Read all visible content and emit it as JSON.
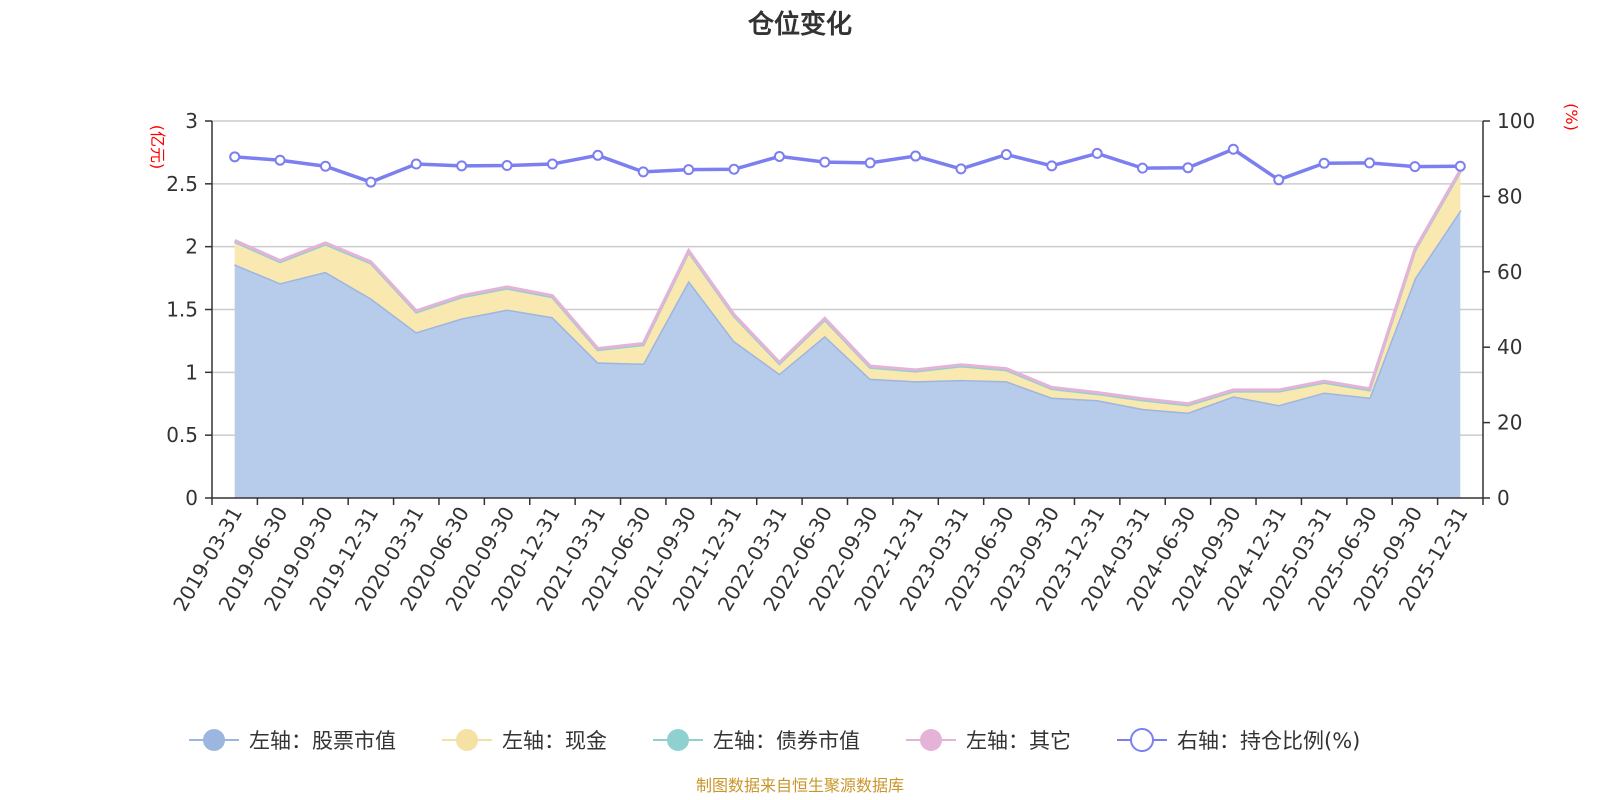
{
  "chart_data": {
    "type": "area",
    "title": "仓位变化",
    "left_axis_unit": "(亿元)",
    "right_axis_unit": "(%)",
    "left_ylim": [
      0,
      3
    ],
    "left_ticks": [
      "0",
      "0.5",
      "1",
      "1.5",
      "2",
      "2.5",
      "3"
    ],
    "right_ylim": [
      0,
      100
    ],
    "right_ticks": [
      "0",
      "20",
      "40",
      "60",
      "80",
      "100"
    ],
    "grid": true,
    "legend_position": "bottom",
    "categories": [
      "2019-03-31",
      "2019-06-30",
      "2019-09-30",
      "2019-12-31",
      "2020-03-31",
      "2020-06-30",
      "2020-09-30",
      "2020-12-31",
      "2021-03-31",
      "2021-06-30",
      "2021-09-30",
      "2021-12-31",
      "2022-03-31",
      "2022-06-30",
      "2022-09-30",
      "2022-12-31",
      "2023-03-31",
      "2023-06-30",
      "2023-09-30",
      "2023-12-31",
      "2024-03-31",
      "2024-06-30",
      "2024-09-30",
      "2024-12-31",
      "2025-03-31",
      "2025-06-30",
      "2025-09-30",
      "2025-12-31"
    ],
    "series": [
      {
        "name": "左轴：股票市值",
        "axis": "left",
        "kind": "stacked-area",
        "color": "#9db6e0",
        "fill": "#b7cbea",
        "values": [
          1.86,
          1.71,
          1.8,
          1.59,
          1.32,
          1.43,
          1.5,
          1.44,
          1.08,
          1.07,
          1.73,
          1.25,
          0.99,
          1.29,
          0.95,
          0.93,
          0.94,
          0.93,
          0.8,
          0.78,
          0.71,
          0.68,
          0.81,
          0.74,
          0.84,
          0.8,
          1.75,
          2.29
        ]
      },
      {
        "name": "左轴：现金",
        "axis": "left",
        "kind": "stacked-area",
        "color": "#f5e1a4",
        "fill": "#f9e8b0",
        "values": [
          0.18,
          0.17,
          0.22,
          0.28,
          0.16,
          0.17,
          0.17,
          0.16,
          0.1,
          0.15,
          0.23,
          0.2,
          0.08,
          0.13,
          0.09,
          0.08,
          0.11,
          0.09,
          0.07,
          0.05,
          0.07,
          0.06,
          0.04,
          0.11,
          0.08,
          0.06,
          0.22,
          0.31
        ]
      },
      {
        "name": "左轴：债券市值",
        "axis": "left",
        "kind": "stacked-area",
        "color": "#8fd0d0",
        "fill": "#8fd0d0",
        "values": [
          0,
          0,
          0,
          0,
          0,
          0,
          0,
          0,
          0,
          0,
          0,
          0,
          0,
          0,
          0,
          0,
          0,
          0,
          0,
          0,
          0,
          0,
          0,
          0,
          0,
          0,
          0,
          0
        ]
      },
      {
        "name": "左轴：其它",
        "axis": "left",
        "kind": "stacked-area",
        "color": "#e6b3d8",
        "fill": "#e6b3d8",
        "values": [
          0.01,
          0.01,
          0.01,
          0.01,
          0.01,
          0.01,
          0.01,
          0.01,
          0.01,
          0.01,
          0.01,
          0.01,
          0.01,
          0.01,
          0.01,
          0.01,
          0.01,
          0.01,
          0.01,
          0.01,
          0.01,
          0.01,
          0.01,
          0.01,
          0.01,
          0.01,
          0.01,
          0.01
        ]
      },
      {
        "name": "右轴：持仓比例(%)",
        "axis": "right",
        "kind": "line",
        "color": "#7b7ff0",
        "values": [
          90.5,
          89.6,
          88.0,
          83.8,
          88.6,
          88.1,
          88.2,
          88.6,
          90.9,
          86.5,
          87.1,
          87.2,
          90.6,
          89.1,
          88.9,
          90.7,
          87.3,
          91.1,
          88.1,
          91.4,
          87.5,
          87.6,
          92.5,
          84.4,
          88.8,
          88.9,
          87.9,
          88.0
        ]
      }
    ],
    "source": "制图数据来自恒生聚源数据库"
  }
}
